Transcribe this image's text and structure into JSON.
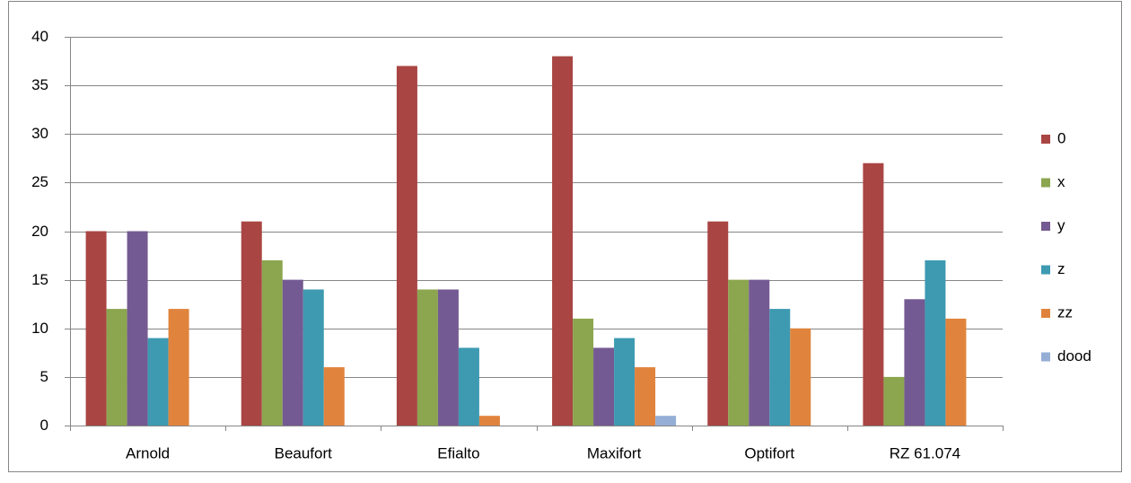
{
  "chart_data": {
    "type": "bar",
    "categories": [
      "Arnold",
      "Beaufort",
      "Efialto",
      "Maxifort",
      "Optifort",
      "RZ 61.074"
    ],
    "series": [
      {
        "name": "0",
        "color": "#a94543",
        "values": [
          20,
          21,
          37,
          38,
          21,
          27
        ]
      },
      {
        "name": "x",
        "color": "#8ca54f",
        "values": [
          12,
          17,
          14,
          11,
          15,
          5
        ]
      },
      {
        "name": "y",
        "color": "#745a92",
        "values": [
          20,
          15,
          14,
          8,
          15,
          13
        ]
      },
      {
        "name": "z",
        "color": "#3d9ab1",
        "values": [
          9,
          14,
          8,
          9,
          12,
          17
        ]
      },
      {
        "name": "zz",
        "color": "#e0843d",
        "values": [
          12,
          6,
          1,
          6,
          10,
          11
        ]
      },
      {
        "name": "dood",
        "color": "#95aed5",
        "values": [
          0,
          0,
          0,
          1,
          0,
          0
        ]
      }
    ],
    "ylim": [
      0,
      40
    ],
    "yticks": [
      0,
      5,
      10,
      15,
      20,
      25,
      30,
      35,
      40
    ],
    "grid": true,
    "legend": "right"
  }
}
